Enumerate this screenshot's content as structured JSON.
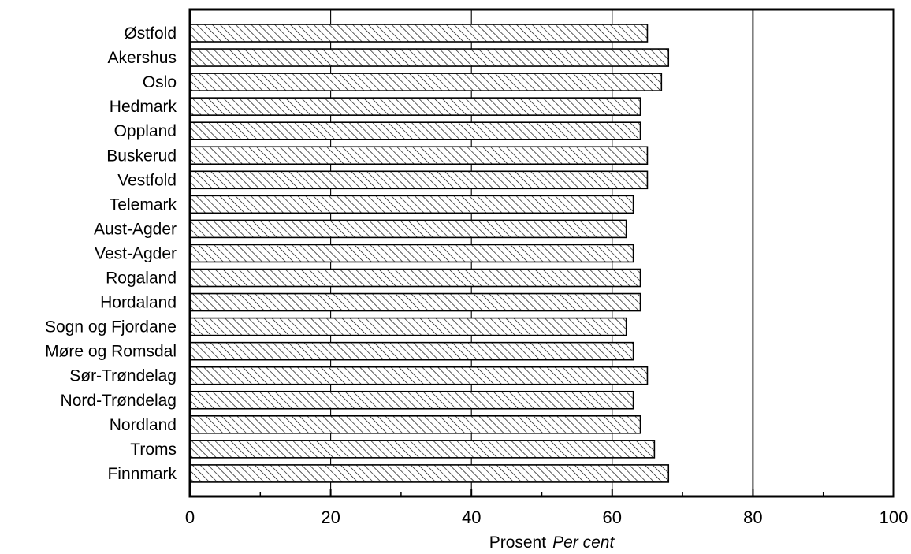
{
  "chart_data": {
    "type": "bar",
    "orientation": "horizontal",
    "categories": [
      "Østfold",
      "Akershus",
      "Oslo",
      "Hedmark",
      "Oppland",
      "Buskerud",
      "Vestfold",
      "Telemark",
      "Aust-Agder",
      "Vest-Agder",
      "Rogaland",
      "Hordaland",
      "Sogn og Fjordane",
      "Møre og Romsdal",
      "Sør-Trøndelag",
      "Nord-Trøndelag",
      "Nordland",
      "Troms",
      "Finnmark"
    ],
    "values": [
      65,
      68,
      67,
      64,
      64,
      65,
      65,
      63,
      62,
      63,
      64,
      64,
      62,
      63,
      65,
      63,
      64,
      66,
      68
    ],
    "xlabel": "Prosent",
    "xlabel_en": "Per cent",
    "xlim": [
      0,
      100
    ],
    "xticks": [
      0,
      20,
      40,
      60,
      80,
      100
    ],
    "xticks_minor": [
      10,
      30,
      50,
      70,
      90
    ],
    "grid_lines": [
      20,
      40,
      60,
      80
    ],
    "bar_fill": "diagonal-hatch",
    "colors": {
      "bar_fill": "#ffffff",
      "bar_stroke": "#000000",
      "hatch": "#000000"
    }
  }
}
